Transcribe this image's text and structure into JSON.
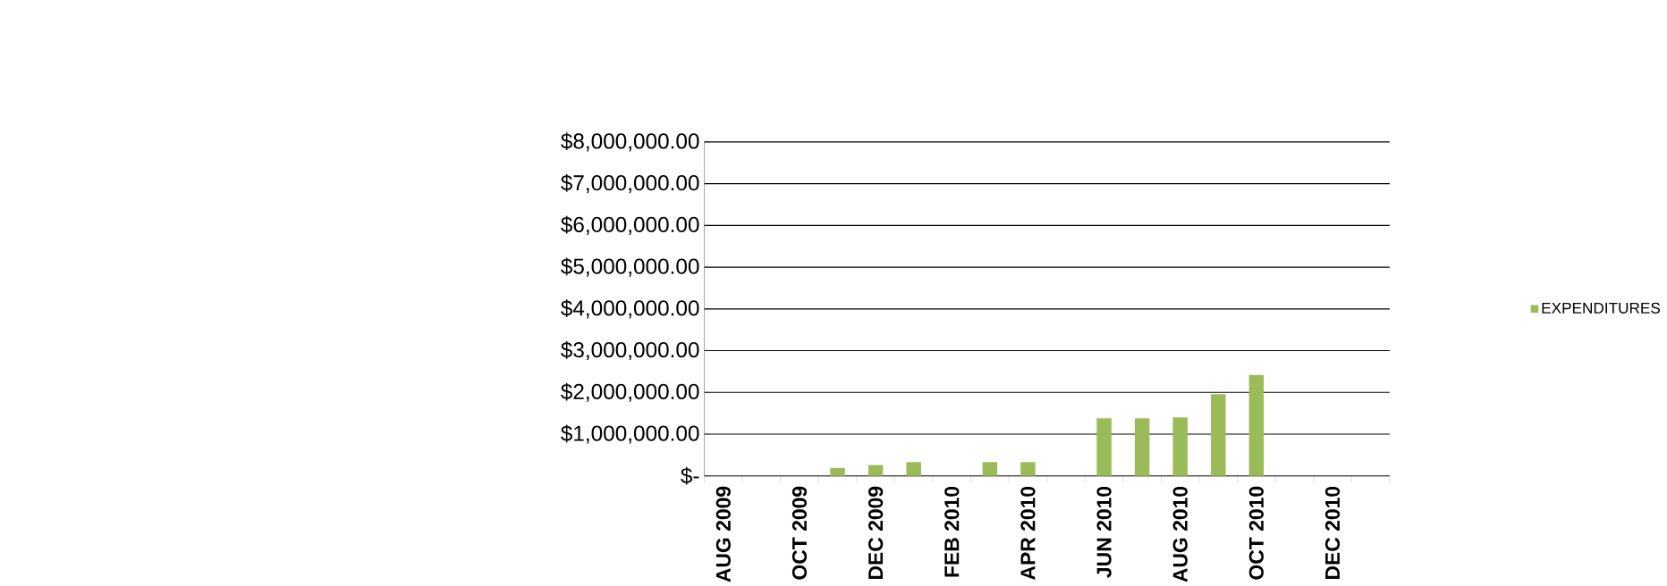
{
  "chart_data": {
    "type": "bar",
    "categories": [
      "AUG 2009",
      null,
      "OCT 2009",
      null,
      "DEC 2009",
      null,
      "FEB 2010",
      null,
      "APR 2010",
      null,
      "JUN 2010",
      null,
      "AUG 2010",
      null,
      "OCT 2010",
      null,
      "DEC 2010",
      null
    ],
    "series": [
      {
        "name": "EXPENDITURES",
        "color": "#9bbb59",
        "values": [
          null,
          null,
          null,
          190000,
          260000,
          330000,
          null,
          330000,
          330000,
          null,
          1380000,
          1380000,
          1400000,
          1960000,
          2420000,
          null,
          null,
          null
        ]
      }
    ],
    "ylim": [
      0,
      8000000
    ],
    "yticks": [
      {
        "value": 0,
        "label": "$-"
      },
      {
        "value": 1000000,
        "label": "$1,000,000.00"
      },
      {
        "value": 2000000,
        "label": "$2,000,000.00"
      },
      {
        "value": 3000000,
        "label": "$3,000,000.00"
      },
      {
        "value": 4000000,
        "label": "$4,000,000.00"
      },
      {
        "value": 5000000,
        "label": "$5,000,000.00"
      },
      {
        "value": 6000000,
        "label": "$6,000,000.00"
      },
      {
        "value": 7000000,
        "label": "$7,000,000.00"
      },
      {
        "value": 8000000,
        "label": "$8,000,000.00"
      }
    ],
    "grid": "y",
    "legend": "right"
  }
}
